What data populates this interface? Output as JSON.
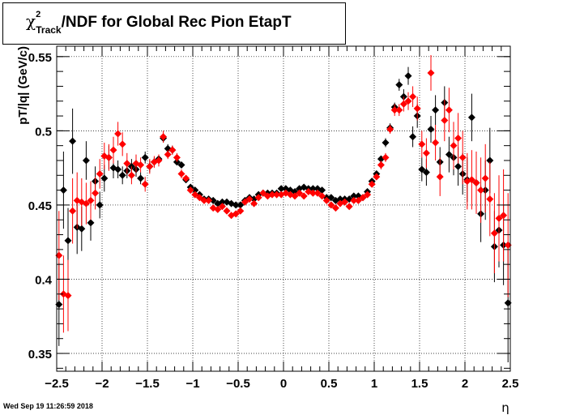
{
  "page": {
    "timestamp": "Wed Sep 19 11:26:59 2018"
  },
  "chart_data": {
    "type": "scatter",
    "title": {
      "prefix": "χ",
      "superscript": "2",
      "subscript": "Track",
      "suffix": "/NDF for Global Rec Pion EtapT"
    },
    "xlabel": "η",
    "ylabel": "pT/|q| (GeV/c)",
    "xlim": [
      -2.5,
      2.5
    ],
    "ylim": [
      0.338,
      0.557
    ],
    "xticks": [
      -2.5,
      -2,
      -1.5,
      -1,
      -0.5,
      0,
      0.5,
      1,
      1.5,
      2,
      2.5
    ],
    "xtick_labels": [
      "−2.5",
      "−2",
      "−1.5",
      "−1",
      "−0.5",
      "0",
      "0.5",
      "1",
      "1.5",
      "2",
      "2.5"
    ],
    "yticks": [
      0.35,
      0.4,
      0.45,
      0.5,
      0.55
    ],
    "ytick_labels": [
      "0.35",
      "0.4",
      "0.45",
      "0.5",
      "0.55"
    ],
    "grid": true,
    "series": [
      {
        "color": "#000000",
        "points": [
          [
            -2.475,
            0.383,
            0.028
          ],
          [
            -2.425,
            0.46,
            0.026
          ],
          [
            -2.375,
            0.426,
            0.022
          ],
          [
            -2.325,
            0.493,
            0.022
          ],
          [
            -2.275,
            0.435,
            0.018
          ],
          [
            -2.225,
            0.434,
            0.015
          ],
          [
            -2.175,
            0.48,
            0.013
          ],
          [
            -2.125,
            0.438,
            0.012
          ],
          [
            -2.075,
            0.466,
            0.01
          ],
          [
            -2.025,
            0.45,
            0.009
          ],
          [
            -1.975,
            0.468,
            0.009
          ],
          [
            -1.925,
            0.482,
            0.008
          ],
          [
            -1.875,
            0.475,
            0.007
          ],
          [
            -1.825,
            0.474,
            0.006
          ],
          [
            -1.775,
            0.47,
            0.006
          ],
          [
            -1.725,
            0.473,
            0.005
          ],
          [
            -1.675,
            0.476,
            0.005
          ],
          [
            -1.625,
            0.474,
            0.005
          ],
          [
            -1.575,
            0.468,
            0.004
          ],
          [
            -1.525,
            0.482,
            0.004
          ],
          [
            -1.475,
            0.476,
            0.004
          ],
          [
            -1.425,
            0.479,
            0.003
          ],
          [
            -1.375,
            0.481,
            0.003
          ],
          [
            -1.325,
            0.495,
            0.003
          ],
          [
            -1.275,
            0.488,
            0.003
          ],
          [
            -1.225,
            0.487,
            0.003
          ],
          [
            -1.175,
            0.479,
            0.002
          ],
          [
            -1.125,
            0.477,
            0.002
          ],
          [
            -1.075,
            0.467,
            0.002
          ],
          [
            -1.025,
            0.462,
            0.002
          ],
          [
            -0.975,
            0.46,
            0.002
          ],
          [
            -0.925,
            0.457,
            0.002
          ],
          [
            -0.875,
            0.454,
            0.002
          ],
          [
            -0.825,
            0.454,
            0.002
          ],
          [
            -0.775,
            0.453,
            0.002
          ],
          [
            -0.725,
            0.451,
            0.002
          ],
          [
            -0.675,
            0.452,
            0.002
          ],
          [
            -0.625,
            0.452,
            0.002
          ],
          [
            -0.575,
            0.451,
            0.002
          ],
          [
            -0.525,
            0.45,
            0.002
          ],
          [
            -0.475,
            0.45,
            0.002
          ],
          [
            -0.425,
            0.453,
            0.002
          ],
          [
            -0.375,
            0.455,
            0.002
          ],
          [
            -0.325,
            0.454,
            0.002
          ],
          [
            -0.275,
            0.457,
            0.002
          ],
          [
            -0.225,
            0.458,
            0.002
          ],
          [
            -0.175,
            0.458,
            0.002
          ],
          [
            -0.125,
            0.458,
            0.002
          ],
          [
            -0.075,
            0.458,
            0.002
          ],
          [
            -0.025,
            0.461,
            0.002
          ],
          [
            0.025,
            0.461,
            0.002
          ],
          [
            0.075,
            0.46,
            0.002
          ],
          [
            0.125,
            0.459,
            0.002
          ],
          [
            0.175,
            0.461,
            0.002
          ],
          [
            0.225,
            0.462,
            0.002
          ],
          [
            0.275,
            0.461,
            0.002
          ],
          [
            0.325,
            0.461,
            0.002
          ],
          [
            0.375,
            0.461,
            0.002
          ],
          [
            0.425,
            0.46,
            0.002
          ],
          [
            0.475,
            0.455,
            0.002
          ],
          [
            0.525,
            0.455,
            0.002
          ],
          [
            0.575,
            0.453,
            0.002
          ],
          [
            0.625,
            0.454,
            0.002
          ],
          [
            0.675,
            0.454,
            0.002
          ],
          [
            0.725,
            0.454,
            0.002
          ],
          [
            0.775,
            0.456,
            0.002
          ],
          [
            0.825,
            0.456,
            0.002
          ],
          [
            0.875,
            0.455,
            0.002
          ],
          [
            0.925,
            0.459,
            0.002
          ],
          [
            0.975,
            0.466,
            0.002
          ],
          [
            1.025,
            0.471,
            0.002
          ],
          [
            1.075,
            0.481,
            0.002
          ],
          [
            1.125,
            0.492,
            0.003
          ],
          [
            1.175,
            0.502,
            0.003
          ],
          [
            1.225,
            0.516,
            0.003
          ],
          [
            1.275,
            0.531,
            0.004
          ],
          [
            1.325,
            0.523,
            0.005
          ],
          [
            1.375,
            0.537,
            0.006
          ],
          [
            1.425,
            0.496,
            0.007
          ],
          [
            1.475,
            0.51,
            0.008
          ],
          [
            1.525,
            0.474,
            0.008
          ],
          [
            1.575,
            0.472,
            0.009
          ],
          [
            1.625,
            0.501,
            0.009
          ],
          [
            1.675,
            0.514,
            0.01
          ],
          [
            1.725,
            0.479,
            0.01
          ],
          [
            1.775,
            0.519,
            0.011
          ],
          [
            1.825,
            0.484,
            0.012
          ],
          [
            1.875,
            0.482,
            0.012
          ],
          [
            1.925,
            0.476,
            0.013
          ],
          [
            1.975,
            0.471,
            0.014
          ],
          [
            2.025,
            0.467,
            0.015
          ],
          [
            2.075,
            0.509,
            0.016
          ],
          [
            2.125,
            0.465,
            0.018
          ],
          [
            2.175,
            0.444,
            0.019
          ],
          [
            2.225,
            0.46,
            0.02
          ],
          [
            2.275,
            0.48,
            0.022
          ],
          [
            2.325,
            0.422,
            0.024
          ],
          [
            2.375,
            0.433,
            0.025
          ],
          [
            2.425,
            0.423,
            0.027
          ],
          [
            2.475,
            0.384,
            0.04
          ]
        ]
      },
      {
        "color": "#ff0000",
        "points": [
          [
            -2.475,
            0.416,
            0.03
          ],
          [
            -2.425,
            0.39,
            0.026
          ],
          [
            -2.375,
            0.389,
            0.024
          ],
          [
            -2.325,
            0.446,
            0.022
          ],
          [
            -2.275,
            0.453,
            0.019
          ],
          [
            -2.225,
            0.452,
            0.016
          ],
          [
            -2.175,
            0.451,
            0.014
          ],
          [
            -2.125,
            0.453,
            0.013
          ],
          [
            -2.075,
            0.458,
            0.011
          ],
          [
            -2.025,
            0.471,
            0.01
          ],
          [
            -1.975,
            0.483,
            0.009
          ],
          [
            -1.925,
            0.482,
            0.009
          ],
          [
            -1.875,
            0.487,
            0.009
          ],
          [
            -1.825,
            0.498,
            0.008
          ],
          [
            -1.775,
            0.491,
            0.008
          ],
          [
            -1.725,
            0.478,
            0.007
          ],
          [
            -1.675,
            0.47,
            0.006
          ],
          [
            -1.625,
            0.478,
            0.006
          ],
          [
            -1.575,
            0.477,
            0.005
          ],
          [
            -1.525,
            0.464,
            0.005
          ],
          [
            -1.475,
            0.476,
            0.005
          ],
          [
            -1.425,
            0.479,
            0.004
          ],
          [
            -1.375,
            0.48,
            0.004
          ],
          [
            -1.325,
            0.496,
            0.004
          ],
          [
            -1.275,
            0.484,
            0.003
          ],
          [
            -1.225,
            0.487,
            0.003
          ],
          [
            -1.175,
            0.482,
            0.003
          ],
          [
            -1.125,
            0.471,
            0.003
          ],
          [
            -1.075,
            0.468,
            0.002
          ],
          [
            -1.025,
            0.46,
            0.002
          ],
          [
            -0.975,
            0.457,
            0.002
          ],
          [
            -0.925,
            0.455,
            0.002
          ],
          [
            -0.875,
            0.453,
            0.002
          ],
          [
            -0.825,
            0.453,
            0.002
          ],
          [
            -0.775,
            0.448,
            0.002
          ],
          [
            -0.725,
            0.447,
            0.002
          ],
          [
            -0.675,
            0.449,
            0.002
          ],
          [
            -0.625,
            0.446,
            0.002
          ],
          [
            -0.575,
            0.443,
            0.002
          ],
          [
            -0.525,
            0.444,
            0.002
          ],
          [
            -0.475,
            0.446,
            0.002
          ],
          [
            -0.425,
            0.452,
            0.002
          ],
          [
            -0.375,
            0.454,
            0.002
          ],
          [
            -0.325,
            0.451,
            0.002
          ],
          [
            -0.275,
            0.455,
            0.002
          ],
          [
            -0.225,
            0.458,
            0.002
          ],
          [
            -0.175,
            0.456,
            0.002
          ],
          [
            -0.125,
            0.457,
            0.002
          ],
          [
            -0.075,
            0.457,
            0.002
          ],
          [
            -0.025,
            0.457,
            0.002
          ],
          [
            0.025,
            0.458,
            0.002
          ],
          [
            0.075,
            0.457,
            0.002
          ],
          [
            0.125,
            0.456,
            0.002
          ],
          [
            0.175,
            0.458,
            0.002
          ],
          [
            0.225,
            0.456,
            0.002
          ],
          [
            0.275,
            0.459,
            0.002
          ],
          [
            0.325,
            0.458,
            0.002
          ],
          [
            0.375,
            0.458,
            0.002
          ],
          [
            0.425,
            0.456,
            0.002
          ],
          [
            0.475,
            0.453,
            0.002
          ],
          [
            0.525,
            0.45,
            0.002
          ],
          [
            0.575,
            0.448,
            0.002
          ],
          [
            0.625,
            0.451,
            0.002
          ],
          [
            0.675,
            0.452,
            0.002
          ],
          [
            0.725,
            0.449,
            0.002
          ],
          [
            0.775,
            0.453,
            0.002
          ],
          [
            0.825,
            0.453,
            0.002
          ],
          [
            0.875,
            0.455,
            0.002
          ],
          [
            0.925,
            0.457,
            0.002
          ],
          [
            0.975,
            0.464,
            0.002
          ],
          [
            1.025,
            0.469,
            0.002
          ],
          [
            1.075,
            0.477,
            0.003
          ],
          [
            1.125,
            0.482,
            0.003
          ],
          [
            1.175,
            0.501,
            0.003
          ],
          [
            1.225,
            0.514,
            0.004
          ],
          [
            1.275,
            0.514,
            0.004
          ],
          [
            1.325,
            0.518,
            0.005
          ],
          [
            1.375,
            0.52,
            0.006
          ],
          [
            1.425,
            0.523,
            0.007
          ],
          [
            1.475,
            0.515,
            0.008
          ],
          [
            1.525,
            0.491,
            0.009
          ],
          [
            1.575,
            0.485,
            0.01
          ],
          [
            1.625,
            0.539,
            0.012
          ],
          [
            1.675,
            0.492,
            0.012
          ],
          [
            1.725,
            0.469,
            0.013
          ],
          [
            1.775,
            0.507,
            0.014
          ],
          [
            1.825,
            0.514,
            0.015
          ],
          [
            1.875,
            0.49,
            0.016
          ],
          [
            1.925,
            0.495,
            0.017
          ],
          [
            1.975,
            0.482,
            0.018
          ],
          [
            2.025,
            0.466,
            0.019
          ],
          [
            2.075,
            0.467,
            0.02
          ],
          [
            2.125,
            0.465,
            0.021
          ],
          [
            2.175,
            0.46,
            0.022
          ],
          [
            2.225,
            0.468,
            0.023
          ],
          [
            2.275,
            0.454,
            0.025
          ],
          [
            2.325,
            0.431,
            0.027
          ],
          [
            2.375,
            0.441,
            0.029
          ],
          [
            2.425,
            0.443,
            0.031
          ],
          [
            2.475,
            0.423,
            0.035
          ]
        ]
      }
    ]
  }
}
